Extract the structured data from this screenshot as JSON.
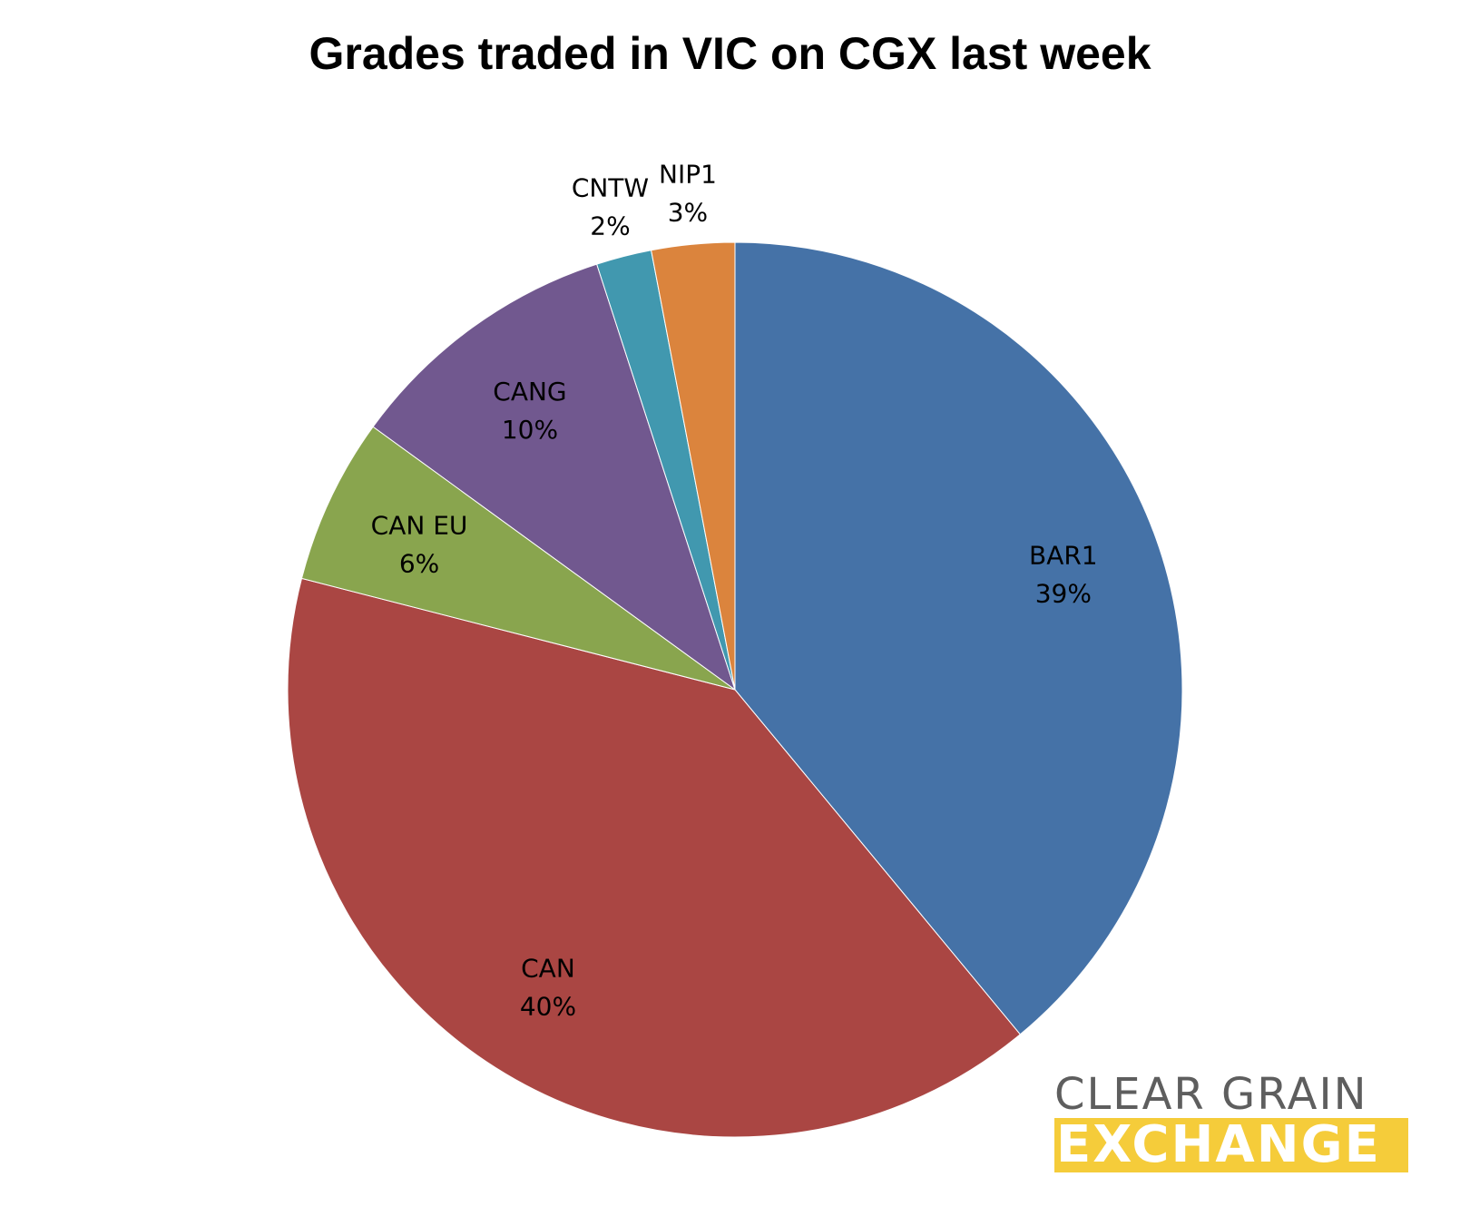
{
  "chart_data": {
    "type": "pie",
    "title": "Grades traded in VIC on CGX last week",
    "slices": [
      {
        "label": "BAR1",
        "value": 39,
        "display": "39%",
        "color": "#4572a7"
      },
      {
        "label": "CAN",
        "value": 40,
        "display": "40%",
        "color": "#aa4643"
      },
      {
        "label": "CAN EU",
        "value": 6,
        "display": "6%",
        "color": "#89a54e"
      },
      {
        "label": "CANG",
        "value": 10,
        "display": "10%",
        "color": "#71588f"
      },
      {
        "label": "CNTW",
        "value": 2,
        "display": "2%",
        "color": "#4198af"
      },
      {
        "label": "NIP1",
        "value": 3,
        "display": "3%",
        "color": "#db843d"
      }
    ]
  },
  "logo": {
    "line1": "CLEAR GRAIN",
    "line2": "EXCHANGE"
  }
}
